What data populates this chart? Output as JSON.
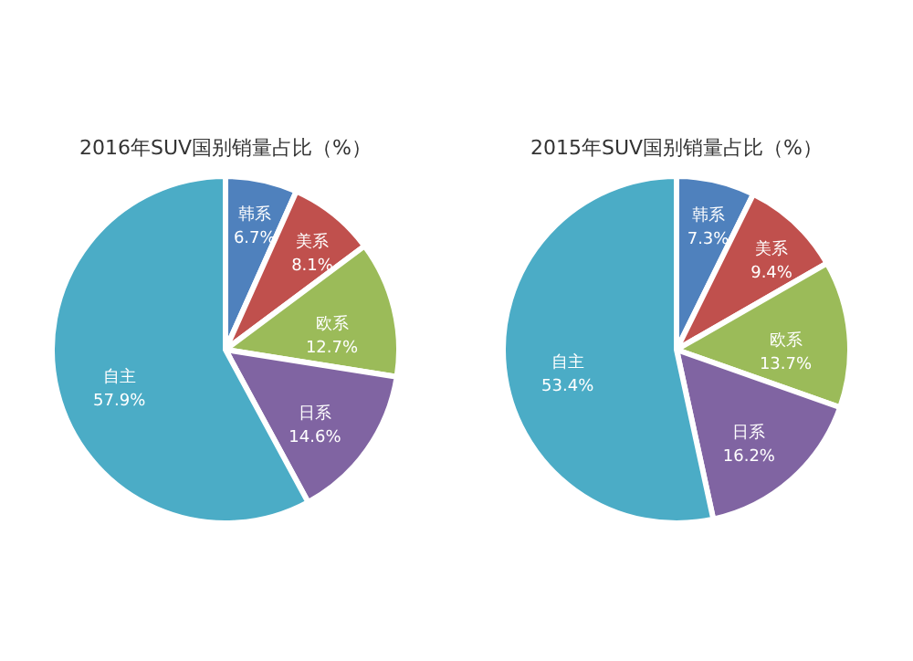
{
  "chart_data": [
    {
      "type": "pie",
      "title": "2016年SUV国别销量占比（%）",
      "categories": [
        "韩系",
        "美系",
        "欧系",
        "日系",
        "自主"
      ],
      "values": [
        6.7,
        8.1,
        12.7,
        14.6,
        57.9
      ],
      "value_labels": [
        "6.7%",
        "8.1%",
        "12.7%",
        "14.6%",
        "57.9%"
      ],
      "colors": [
        "#4f81bd",
        "#c0504d",
        "#9bbb59",
        "#8064a2",
        "#4bacc6"
      ]
    },
    {
      "type": "pie",
      "title": "2015年SUV国别销量占比（%）",
      "categories": [
        "韩系",
        "美系",
        "欧系",
        "日系",
        "自主"
      ],
      "values": [
        7.3,
        9.4,
        13.7,
        16.2,
        53.4
      ],
      "value_labels": [
        "7.3%",
        "9.4%",
        "13.7%",
        "16.2%",
        "53.4%"
      ],
      "colors": [
        "#4f81bd",
        "#c0504d",
        "#9bbb59",
        "#8064a2",
        "#4bacc6"
      ]
    }
  ]
}
